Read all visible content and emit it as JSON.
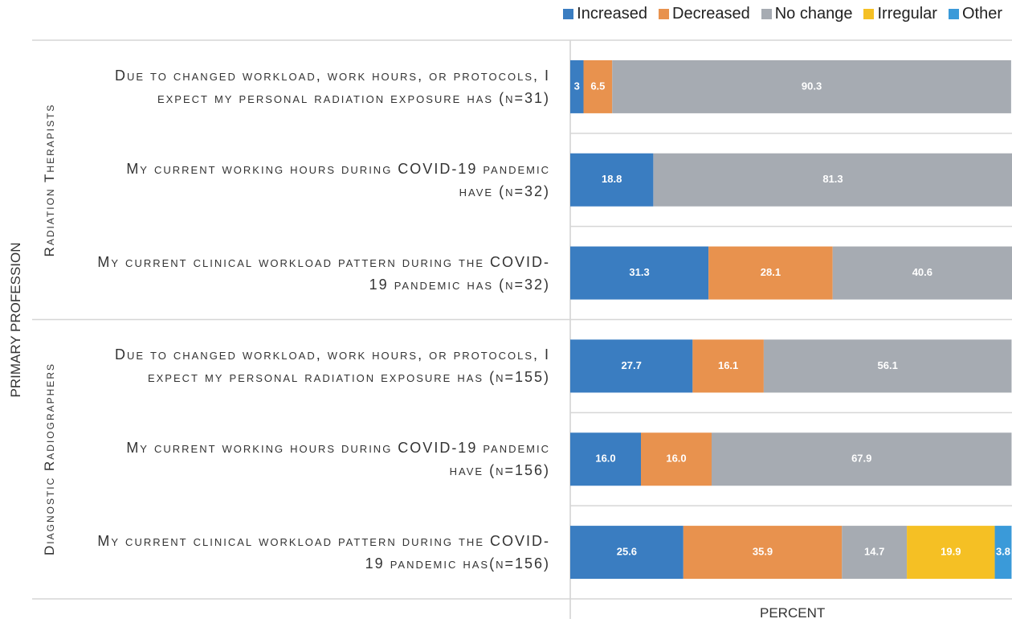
{
  "chart_data": {
    "type": "stacked-barh",
    "xlabel": "PERCENT",
    "ylabel": "PRIMARY PROFESSION",
    "groups": [
      {
        "name": "Radiation Therapists",
        "categories": [
          "Due to changed workload, work hours, or protocols, I expect my personal radiation exposure has (n=31)",
          "My current working hours during COVID-19 pandemic have (n=32)",
          "My current clinical workload pattern during the COVID-19 pandemic has (n=32)"
        ]
      },
      {
        "name": "Diagnostic Radiographers",
        "categories": [
          "Due to changed workload, work hours, or protocols, I expect my personal radiation exposure has (n=155)",
          "My current working hours during COVID-19 pandemic have (n=156)",
          "My current clinical workload pattern during the COVID-19 pandemic has(n=156)"
        ]
      }
    ],
    "series": [
      {
        "name": "Increased",
        "color": "#3a7dc1",
        "values": [
          3,
          18.8,
          31.3,
          27.7,
          16.0,
          25.6
        ],
        "value_labels": [
          "3",
          "18.8",
          "31.3",
          "27.7",
          "16.0",
          "25.6"
        ]
      },
      {
        "name": "Decreased",
        "color": "#e8924e",
        "values": [
          6.5,
          null,
          28.1,
          16.1,
          16.0,
          35.9
        ],
        "value_labels": [
          "6.5",
          null,
          "28.1",
          "16.1",
          "16.0",
          "35.9"
        ]
      },
      {
        "name": "No change",
        "color": "#a6abb2",
        "values": [
          90.3,
          81.3,
          40.6,
          56.1,
          67.9,
          14.7
        ],
        "value_labels": [
          "90.3",
          "81.3",
          "40.6",
          "56.1",
          "67.9",
          "14.7"
        ]
      },
      {
        "name": "Irregular",
        "color": "#f5c024",
        "values": [
          null,
          null,
          null,
          null,
          null,
          19.9
        ],
        "value_labels": [
          null,
          null,
          null,
          null,
          null,
          "19.9"
        ]
      },
      {
        "name": "Other",
        "color": "#3a9ad9",
        "values": [
          null,
          null,
          null,
          null,
          null,
          3.8
        ],
        "value_labels": [
          null,
          null,
          null,
          null,
          null,
          "3.8"
        ]
      }
    ],
    "xlim": [
      0,
      100
    ],
    "legend": "top-right"
  }
}
